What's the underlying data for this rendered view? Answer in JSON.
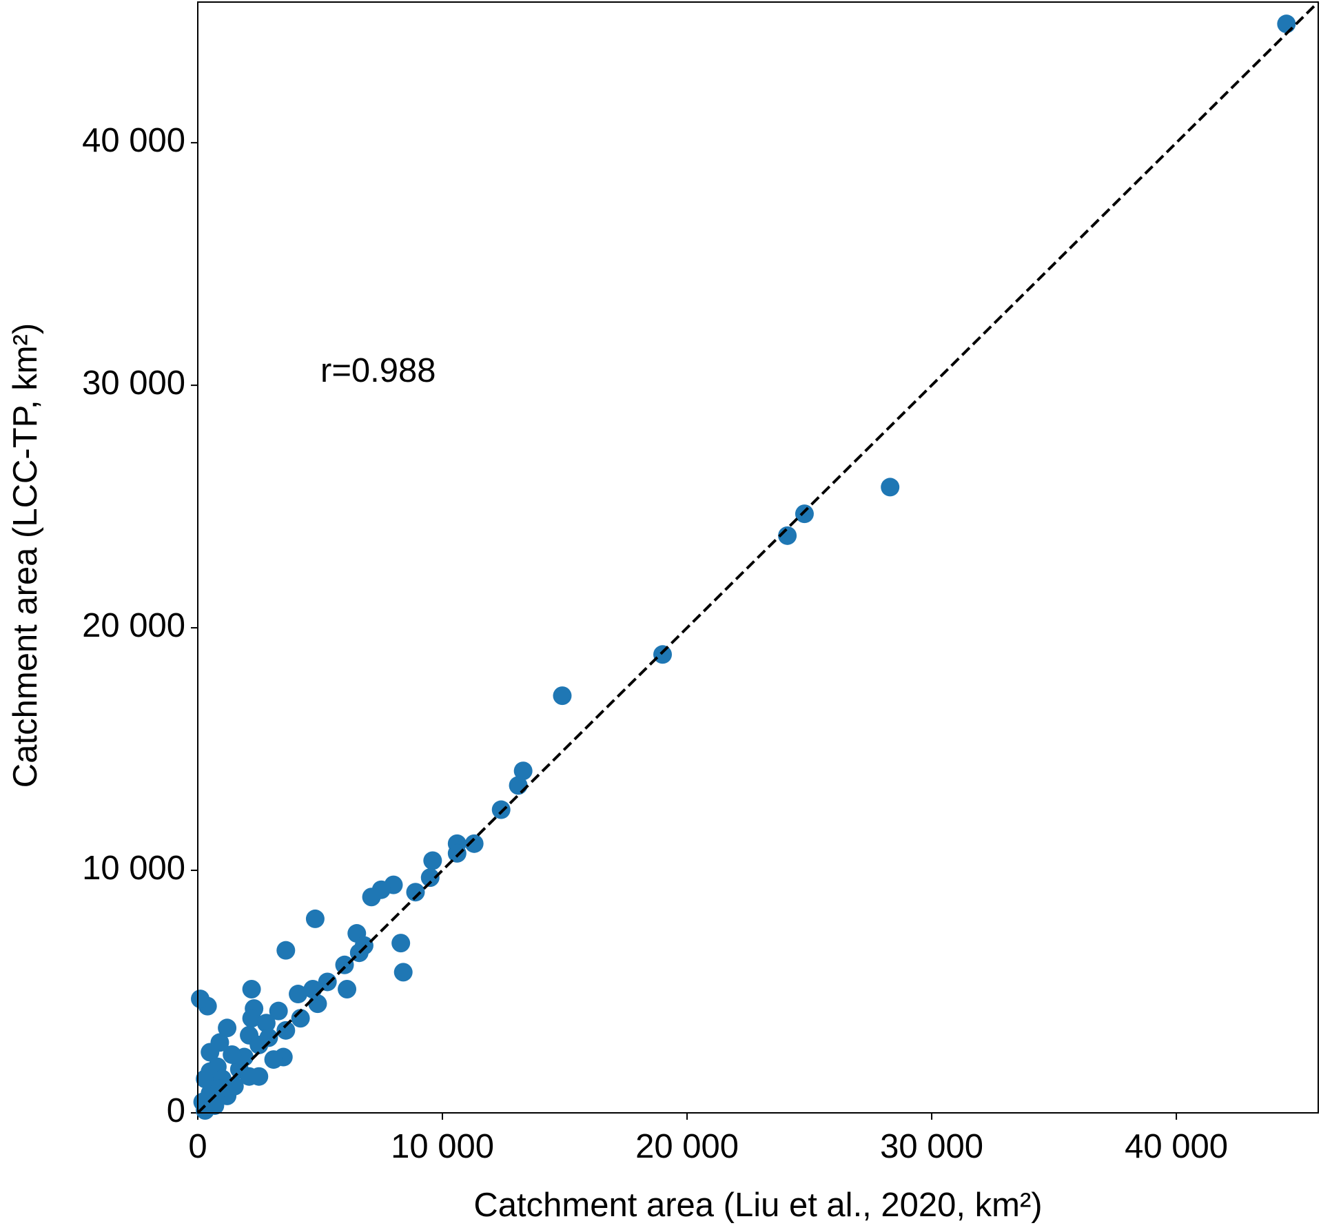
{
  "chart_data": {
    "type": "scatter",
    "x_label": "Catchment area (Liu et al., 2020, km²)",
    "y_label": "Catchment area (LCC-TP, km²)",
    "annotation": "r=0.988",
    "identity_line": true,
    "xlim": [
      0,
      45800
    ],
    "ylim": [
      0,
      45800
    ],
    "xticks": [
      0,
      {
        "value": 10000,
        "label": "10 000"
      },
      {
        "value": 20000,
        "label": "20 000"
      },
      {
        "value": 30000,
        "label": "30 000"
      },
      {
        "value": 40000,
        "label": "40 000"
      }
    ],
    "yticks": [
      0,
      {
        "value": 10000,
        "label": "10 000"
      },
      {
        "value": 20000,
        "label": "20 000"
      },
      {
        "value": 30000,
        "label": "30 000"
      },
      {
        "value": 40000,
        "label": "40 000"
      }
    ],
    "color": "#1f77b4",
    "x": [
      44500,
      28300,
      24800,
      24100,
      19000,
      14900,
      13300,
      13100,
      12400,
      11300,
      10600,
      10600,
      9600,
      9500,
      8900,
      8000,
      7500,
      7100,
      4800,
      8300,
      8400,
      6500,
      6800,
      6600,
      3600,
      6000,
      6100,
      5300,
      4700,
      4900,
      4100,
      4200,
      2200,
      2300,
      3300,
      400,
      100,
      2200,
      2800,
      1200,
      3500,
      3100,
      2100,
      2500,
      900,
      500,
      2500,
      1700,
      1900,
      1400,
      1200,
      500,
      300,
      200,
      500,
      800,
      1000,
      1500,
      2100,
      700,
      300,
      900,
      2900,
      3600
    ],
    "y": [
      44900,
      25800,
      24700,
      23800,
      18900,
      17200,
      14100,
      13500,
      12500,
      11100,
      11100,
      10700,
      10400,
      9700,
      9100,
      9400,
      9200,
      8900,
      8000,
      7000,
      5800,
      7400,
      6900,
      6600,
      6700,
      6100,
      5100,
      5400,
      5100,
      4500,
      4900,
      3900,
      5100,
      4300,
      4200,
      4400,
      4700,
      3900,
      3700,
      3500,
      2300,
      2200,
      3200,
      2800,
      2900,
      2500,
      1500,
      1800,
      2300,
      2400,
      700,
      800,
      1400,
      450,
      1700,
      1900,
      1400,
      1100,
      1500,
      300,
      100,
      1000,
      3100,
      3400
    ]
  }
}
